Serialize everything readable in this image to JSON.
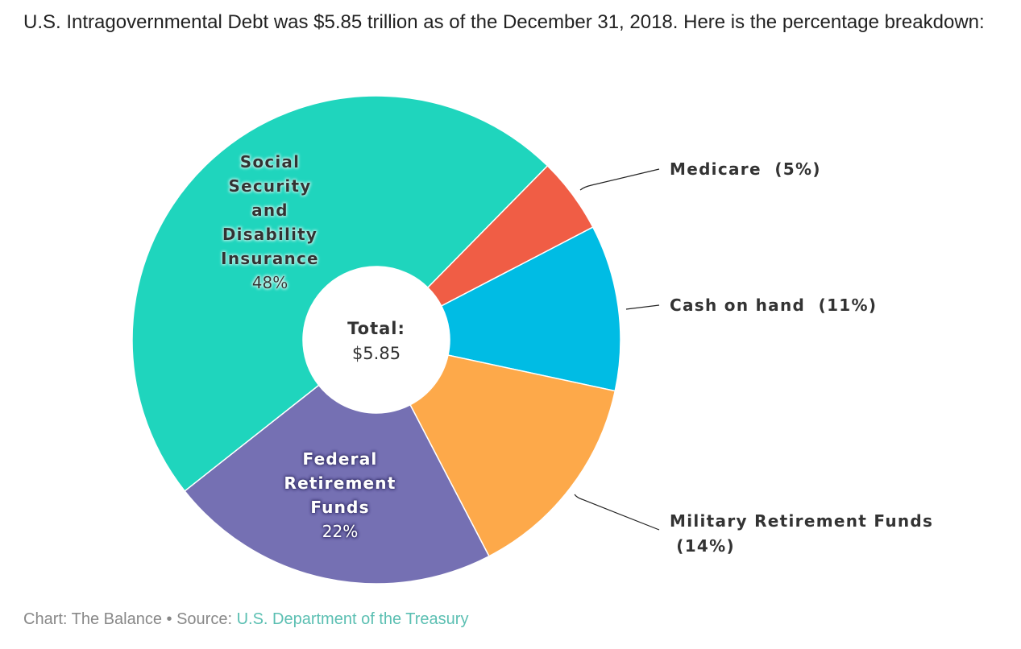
{
  "intro_text": "U.S. Intragovernmental Debt was $5.85 trillion as of the December 31, 2018. Here is the percentage breakdown:",
  "chart_data": {
    "type": "pie",
    "variant": "donut",
    "title": "",
    "unit": "percent",
    "start_angle_deg": 44.5,
    "direction": "clockwise",
    "center_label": {
      "title": "Total:",
      "value": "$5.85"
    },
    "slices": [
      {
        "name": "Medicare",
        "value": 5,
        "color": "#f05d45",
        "label_position": "outside",
        "label_lines": [
          "Medicare  (5%)"
        ]
      },
      {
        "name": "Cash on hand",
        "value": 11,
        "color": "#00bce4",
        "label_position": "outside",
        "label_lines": [
          "Cash on hand  (11%)"
        ]
      },
      {
        "name": "Military Retirement Funds",
        "value": 14,
        "color": "#fda94a",
        "label_position": "outside",
        "label_lines": [
          "Military Retirement Funds",
          " (14%)"
        ]
      },
      {
        "name": "Federal Retirement Funds",
        "value": 22,
        "color": "#7570b3",
        "label_position": "inside",
        "label_lines": [
          "Federal",
          "Retirement",
          "Funds"
        ],
        "pct_label": "22%",
        "text_color": "#ffffff"
      },
      {
        "name": "Social Security and Disability Insurance",
        "value": 48,
        "color": "#1fd5bd",
        "label_position": "inside",
        "label_lines": [
          "Social",
          "Security",
          "and",
          "Disability",
          "Insurance"
        ],
        "pct_label": "48%",
        "text_color": "#333333"
      }
    ]
  },
  "footer": {
    "prefix": "Chart: The Balance • Source: ",
    "source_link": "U.S. Department of the Treasury"
  }
}
